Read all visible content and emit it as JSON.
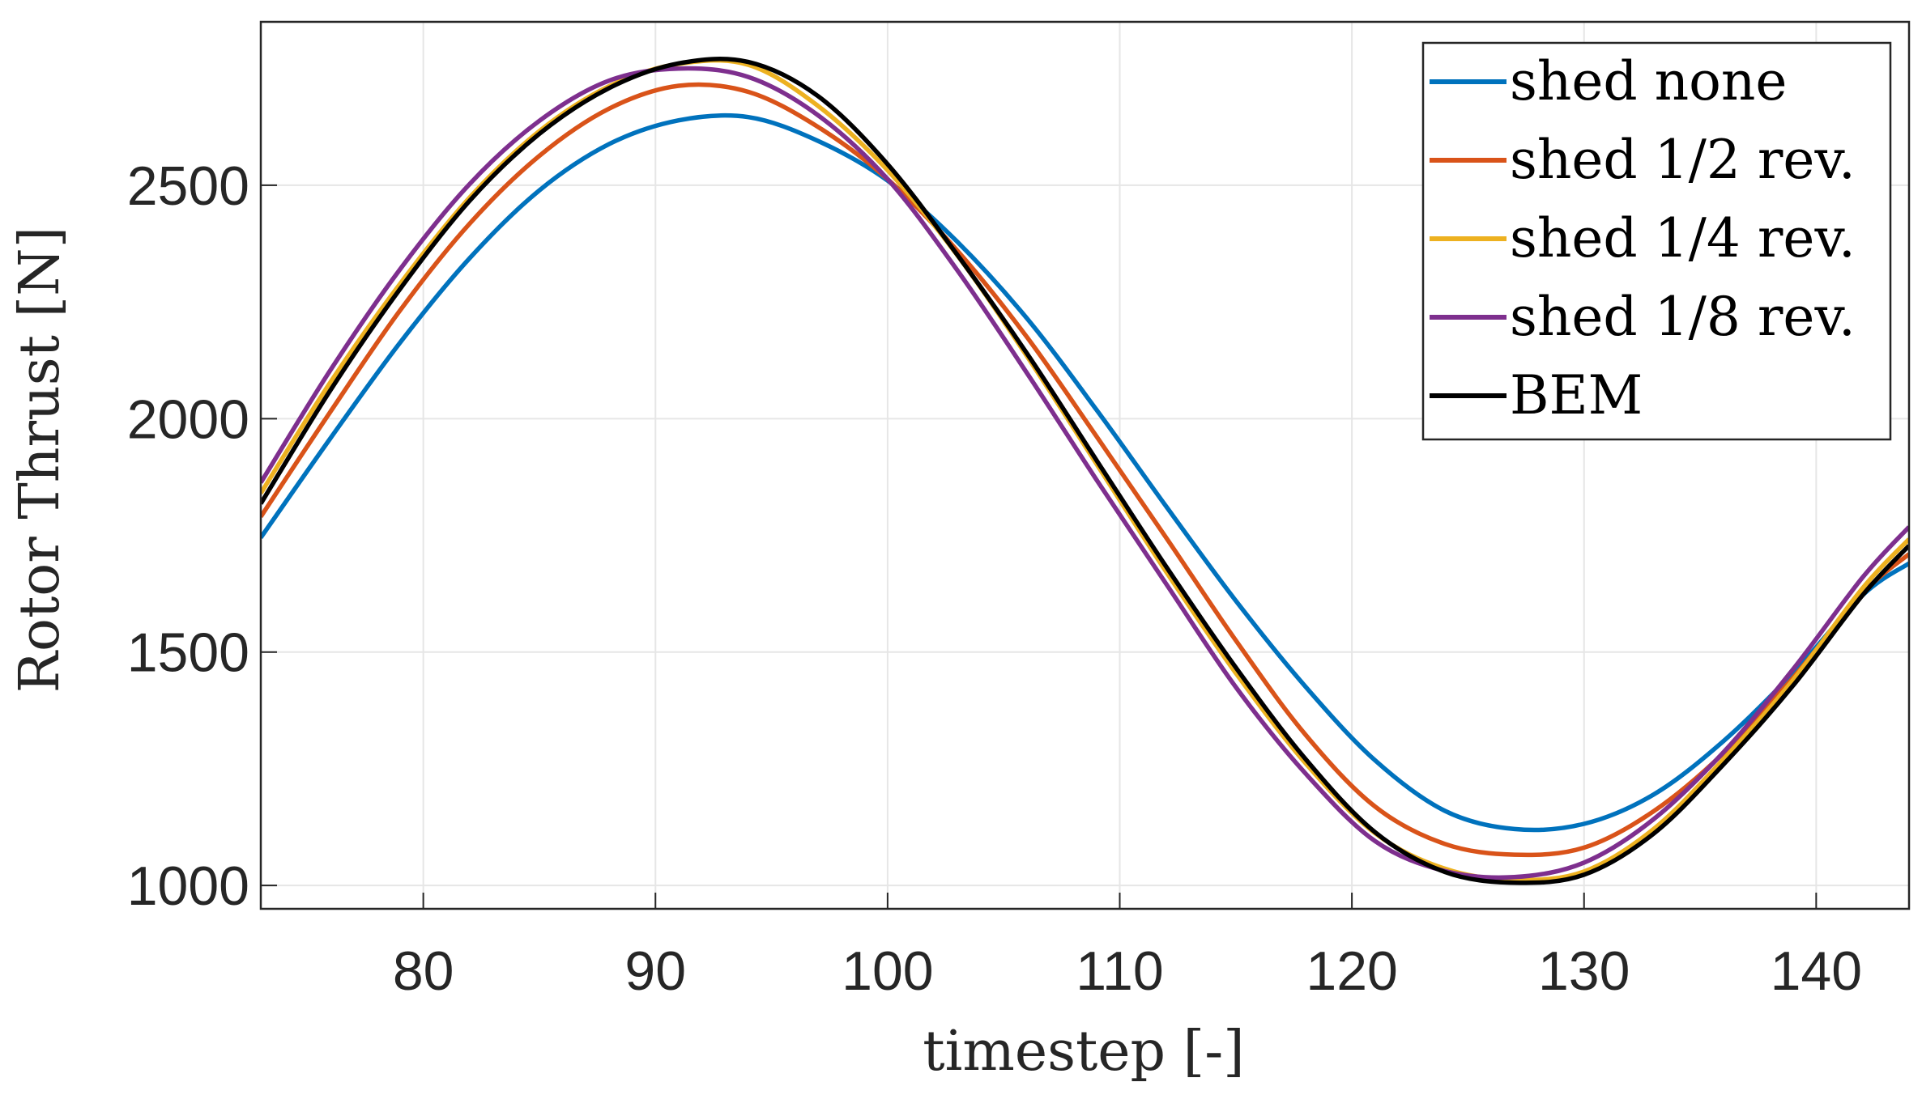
{
  "chart_data": {
    "type": "line",
    "title": "",
    "xlabel": "timestep [-]",
    "ylabel": "Rotor Thrust [N]",
    "xlim": [
      73,
      144
    ],
    "ylim": [
      950,
      2850
    ],
    "xticks": [
      80,
      90,
      100,
      110,
      120,
      130,
      140
    ],
    "yticks": [
      1000,
      1500,
      2000,
      2500
    ],
    "grid": true,
    "legend_position": "top-right",
    "x": [
      73,
      76,
      79,
      82,
      85,
      88,
      91,
      94,
      97,
      100,
      103,
      106,
      109,
      112,
      115,
      118,
      121,
      124,
      127,
      130,
      133,
      136,
      139,
      142,
      144
    ],
    "series": [
      {
        "name": "shed none",
        "color": "#0072BD",
        "values": [
          1745,
          1958,
          2163,
          2344,
          2489,
          2588,
          2639,
          2646,
          2595,
          2510,
          2379,
          2215,
          2019,
          1812,
          1610,
          1426,
          1268,
          1160,
          1121,
          1132,
          1195,
          1309,
          1455,
          1622,
          1690
        ]
      },
      {
        "name": "shed 1/2 rev.",
        "color": "#D95319",
        "values": [
          1790,
          2015,
          2232,
          2418,
          2563,
          2664,
          2713,
          2700,
          2625,
          2513,
          2360,
          2175,
          1962,
          1745,
          1525,
          1323,
          1169,
          1089,
          1066,
          1081,
          1159,
          1283,
          1445,
          1626,
          1710
        ]
      },
      {
        "name": "shed 1/4 rev.",
        "color": "#EDB120",
        "values": [
          1840,
          2078,
          2289,
          2474,
          2616,
          2712,
          2760,
          2758,
          2670,
          2532,
          2350,
          2134,
          1903,
          1672,
          1455,
          1262,
          1112,
          1036,
          1012,
          1030,
          1121,
          1270,
          1440,
          1637,
          1742
        ]
      },
      {
        "name": "shed 1/8 rev.",
        "color": "#7E2F8E",
        "values": [
          1863,
          2104,
          2320,
          2503,
          2638,
          2724,
          2750,
          2732,
          2650,
          2513,
          2318,
          2098,
          1869,
          1646,
          1425,
          1240,
          1095,
          1031,
          1018,
          1049,
          1142,
          1285,
          1463,
          1660,
          1768
        ]
      },
      {
        "name": "BEM",
        "color": "#000000",
        "values": [
          1818,
          2061,
          2278,
          2467,
          2610,
          2708,
          2761,
          2764,
          2691,
          2545,
          2351,
          2140,
          1911,
          1683,
          1467,
          1271,
          1114,
          1029,
          1006,
          1023,
          1111,
          1259,
          1428,
          1622,
          1728
        ]
      }
    ]
  }
}
